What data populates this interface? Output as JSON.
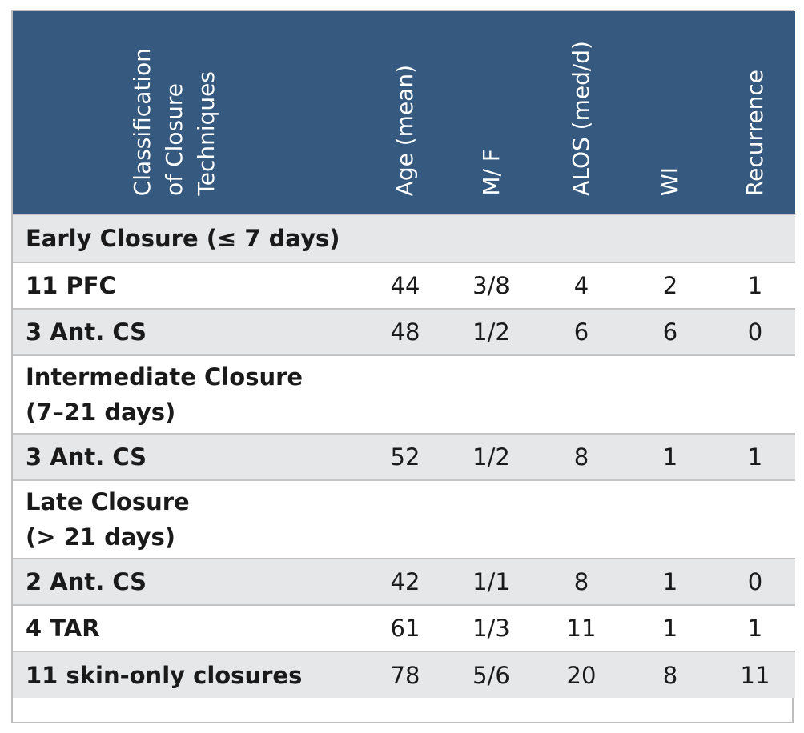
{
  "table": {
    "headers": [
      "Classification of Closure Techniques",
      "Age (mean)",
      "M/ F",
      "ALOS (med/d)",
      "WI",
      "Recurrence"
    ],
    "header_lines": [
      "Classification",
      "of Closure",
      "Techniques"
    ],
    "sections": [
      {
        "title": "Early Closure (≤ 7 days)",
        "rows": [
          {
            "label": "11 PFC",
            "age": "44",
            "mf": "3/8",
            "alos": "4",
            "wi": "2",
            "recurrence": "1"
          },
          {
            "label": "3 Ant. CS",
            "age": "48",
            "mf": "1/2",
            "alos": "6",
            "wi": "6",
            "recurrence": "0"
          }
        ]
      },
      {
        "title": "Intermediate Closure (7–21 days)",
        "title_lines": [
          "Intermediate Closure",
          "(7–21 days)"
        ],
        "rows": [
          {
            "label": "3 Ant. CS",
            "age": "52",
            "mf": "1/2",
            "alos": "8",
            "wi": "1",
            "recurrence": "1"
          }
        ]
      },
      {
        "title": "Late Closure (> 21 days)",
        "title_lines": [
          "Late Closure",
          "(> 21 days)"
        ],
        "rows": [
          {
            "label": "2 Ant. CS",
            "age": "42",
            "mf": "1/1",
            "alos": "8",
            "wi": "1",
            "recurrence": "0"
          },
          {
            "label": "4 TAR",
            "age": "61",
            "mf": "1/3",
            "alos": "11",
            "wi": "1",
            "recurrence": "1"
          },
          {
            "label": "11 skin-only closures",
            "age": "78",
            "mf": "5/6",
            "alos": "20",
            "wi": "8",
            "recurrence": "11"
          }
        ]
      }
    ]
  },
  "colors": {
    "header_bg": "#35597f",
    "alt_row": "#e6e7e9",
    "border": "#c4c4c4"
  }
}
